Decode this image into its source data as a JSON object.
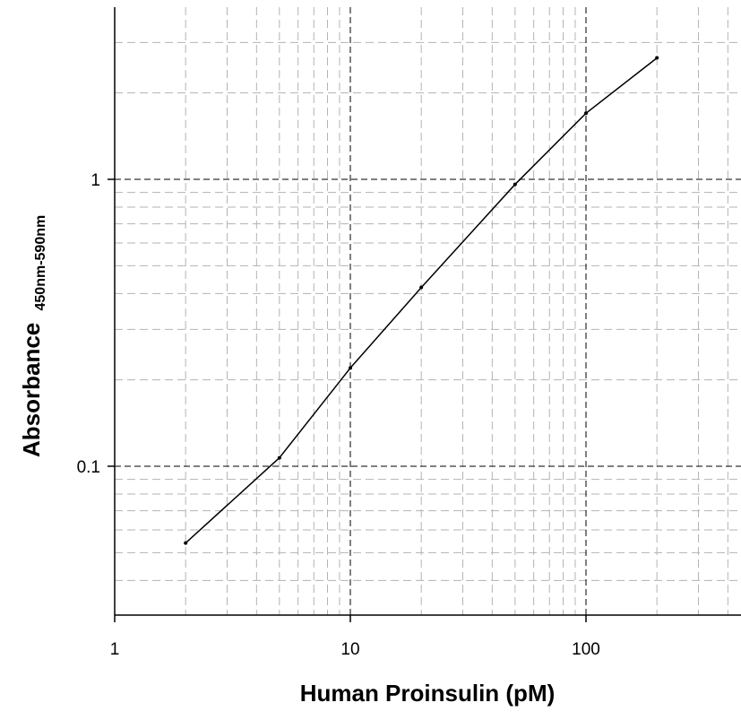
{
  "chart_data": {
    "type": "line",
    "title": "",
    "xlabel": "Human Proinsulin (pM)",
    "ylabel": "Absorbance",
    "ylabel_subscript": "450nm-590nm",
    "x_scale": "log",
    "y_scale": "log",
    "xlim": [
      1,
      400
    ],
    "ylim": [
      0.03,
      3.9
    ],
    "x_ticks": [
      1,
      10,
      100
    ],
    "x_tick_labels": [
      "1",
      "10",
      "100"
    ],
    "y_ticks": [
      0.1,
      1
    ],
    "y_tick_labels": [
      "0.1",
      "1"
    ],
    "grid": true,
    "legend": "none",
    "series": [
      {
        "x": [
          2,
          5,
          10,
          20,
          50,
          100,
          200
        ],
        "y": [
          0.054,
          0.107,
          0.22,
          0.42,
          0.96,
          1.7,
          2.65
        ]
      }
    ],
    "colors": {
      "line": "#000000",
      "major_grid": "#000000",
      "minor_grid": "#b3b3b3"
    }
  }
}
